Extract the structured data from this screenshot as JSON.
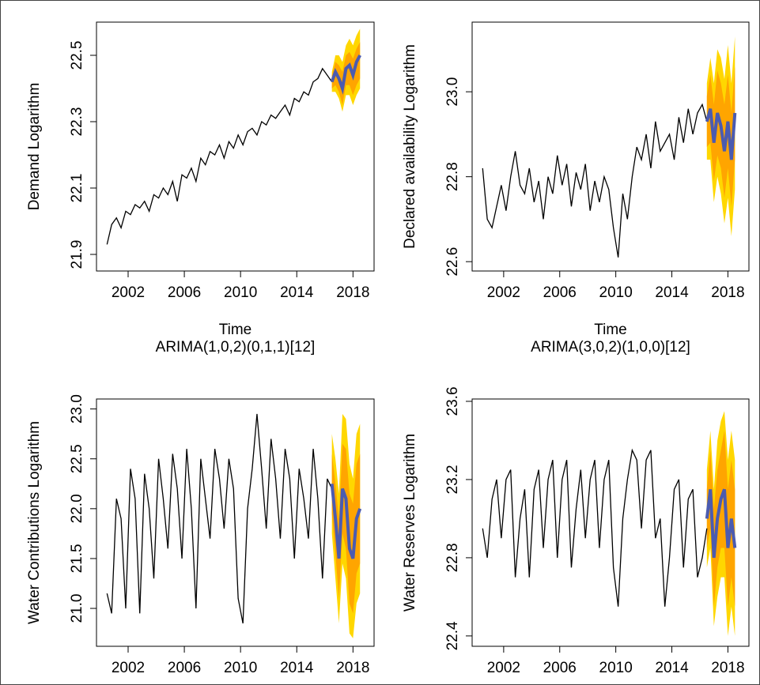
{
  "chart_data": [
    {
      "type": "line",
      "ylabel": "Demand Logarithm",
      "xlabel": "Time",
      "color": "#000000",
      "forecast_color": "#4b5bb0",
      "band80_color": "#ffa500",
      "band95_color": "#ffd700",
      "xlim": [
        1999.75,
        2019.5
      ],
      "xticks": [
        2002,
        2006,
        2010,
        2014,
        2018
      ],
      "ylim": [
        21.85,
        22.6
      ],
      "yticks": [
        21.9,
        22.1,
        22.3,
        22.5
      ],
      "x": [
        2000.5,
        2000.83,
        2001.17,
        2001.5,
        2001.83,
        2002.17,
        2002.5,
        2002.83,
        2003.17,
        2003.5,
        2003.83,
        2004.17,
        2004.5,
        2004.83,
        2005.17,
        2005.5,
        2005.83,
        2006.17,
        2006.5,
        2006.83,
        2007.17,
        2007.5,
        2007.83,
        2008.17,
        2008.5,
        2008.83,
        2009.17,
        2009.5,
        2009.83,
        2010.17,
        2010.5,
        2010.83,
        2011.17,
        2011.5,
        2011.83,
        2012.17,
        2012.5,
        2012.83,
        2013.17,
        2013.5,
        2013.83,
        2014.17,
        2014.5,
        2014.83,
        2015.17,
        2015.5,
        2015.83,
        2016.17,
        2016.5
      ],
      "values": [
        21.93,
        21.99,
        22.01,
        21.98,
        22.03,
        22.02,
        22.05,
        22.04,
        22.06,
        22.03,
        22.08,
        22.07,
        22.1,
        22.08,
        22.12,
        22.06,
        22.14,
        22.13,
        22.16,
        22.12,
        22.19,
        22.17,
        22.21,
        22.2,
        22.23,
        22.19,
        22.24,
        22.22,
        22.26,
        22.23,
        22.27,
        22.28,
        22.26,
        22.3,
        22.29,
        22.32,
        22.31,
        22.33,
        22.35,
        22.32,
        22.37,
        22.36,
        22.39,
        22.38,
        22.42,
        22.43,
        22.46,
        22.44,
        22.42
      ],
      "forecast": {
        "x": [
          2016.5,
          2016.75,
          2017,
          2017.25,
          2017.5,
          2017.75,
          2018,
          2018.25,
          2018.5
        ],
        "mean": [
          22.42,
          22.45,
          22.43,
          22.4,
          22.46,
          22.47,
          22.44,
          22.48,
          22.5
        ],
        "lo80": [
          22.4,
          22.41,
          22.39,
          22.35,
          22.41,
          22.41,
          22.38,
          22.41,
          22.43
        ],
        "hi80": [
          22.44,
          22.48,
          22.47,
          22.45,
          22.5,
          22.51,
          22.49,
          22.52,
          22.54
        ],
        "lo95": [
          22.39,
          22.39,
          22.37,
          22.33,
          22.38,
          22.38,
          22.35,
          22.38,
          22.4
        ],
        "hi95": [
          22.45,
          22.5,
          22.5,
          22.48,
          22.53,
          22.55,
          22.53,
          22.56,
          22.58
        ]
      }
    },
    {
      "type": "line",
      "ylabel": "Declared availability Logarithm",
      "xlabel": "Time",
      "color": "#000000",
      "forecast_color": "#4b5bb0",
      "band80_color": "#ffa500",
      "band95_color": "#ffd700",
      "xlim": [
        1999.75,
        2019.5
      ],
      "xticks": [
        2002,
        2006,
        2010,
        2014,
        2018
      ],
      "ylim": [
        22.578,
        23.164
      ],
      "yticks": [
        22.6,
        22.8,
        {
          "value": 23.0,
          "label": "23.0"
        }
      ],
      "x": [
        2000.5,
        2000.83,
        2001.17,
        2001.5,
        2001.83,
        2002.17,
        2002.5,
        2002.83,
        2003.17,
        2003.5,
        2003.83,
        2004.17,
        2004.5,
        2004.83,
        2005.17,
        2005.5,
        2005.83,
        2006.17,
        2006.5,
        2006.83,
        2007.17,
        2007.5,
        2007.83,
        2008.17,
        2008.5,
        2008.83,
        2009.17,
        2009.5,
        2009.83,
        2010.17,
        2010.5,
        2010.83,
        2011.17,
        2011.5,
        2011.83,
        2012.17,
        2012.5,
        2012.83,
        2013.17,
        2013.5,
        2013.83,
        2014.17,
        2014.5,
        2014.83,
        2015.17,
        2015.5,
        2015.83,
        2016.17,
        2016.5
      ],
      "values": [
        22.82,
        22.7,
        22.68,
        22.73,
        22.78,
        22.72,
        22.8,
        22.86,
        22.78,
        22.76,
        22.82,
        22.74,
        22.79,
        22.7,
        22.8,
        22.76,
        22.85,
        22.78,
        22.83,
        22.73,
        22.81,
        22.77,
        22.83,
        22.72,
        22.79,
        22.74,
        22.8,
        22.77,
        22.68,
        22.61,
        22.76,
        22.7,
        22.8,
        22.87,
        22.84,
        22.9,
        22.82,
        22.93,
        22.86,
        22.88,
        22.9,
        22.84,
        22.94,
        22.88,
        22.96,
        22.9,
        22.95,
        22.97,
        22.93
      ],
      "forecast": {
        "x": [
          2016.5,
          2016.75,
          2017,
          2017.25,
          2017.5,
          2017.75,
          2018,
          2018.25,
          2018.5
        ],
        "mean": [
          22.93,
          22.96,
          22.88,
          22.95,
          22.92,
          22.86,
          22.93,
          22.84,
          22.95
        ],
        "lo80": [
          22.87,
          22.88,
          22.79,
          22.85,
          22.82,
          22.75,
          22.82,
          22.73,
          22.84
        ],
        "hi80": [
          22.99,
          23.04,
          22.97,
          23.05,
          23.02,
          22.97,
          23.04,
          22.95,
          23.06
        ],
        "lo95": [
          22.84,
          22.84,
          22.74,
          22.8,
          22.76,
          22.69,
          22.75,
          22.66,
          22.77
        ],
        "hi95": [
          23.02,
          23.08,
          23.02,
          23.1,
          23.08,
          23.03,
          23.11,
          23.02,
          23.13
        ]
      }
    },
    {
      "type": "line",
      "title": "ARIMA(1,0,2)(0,1,1)[12]",
      "ylabel": "Water Contributions Logarithm",
      "color": "#000000",
      "forecast_color": "#4b5bb0",
      "band80_color": "#ffa500",
      "band95_color": "#ffd700",
      "xlim": [
        1999.75,
        2019.5
      ],
      "xticks": [
        2002,
        2006,
        2010,
        2014,
        2018
      ],
      "ylim": [
        20.62,
        23.1
      ],
      "yticks": [
        {
          "value": 21.0,
          "label": "21.0"
        },
        21.5,
        {
          "value": 22.0,
          "label": "22.0"
        },
        22.5,
        {
          "value": 23.0,
          "label": "23.0"
        }
      ],
      "x": [
        2000.5,
        2000.83,
        2001.17,
        2001.5,
        2001.83,
        2002.17,
        2002.5,
        2002.83,
        2003.17,
        2003.5,
        2003.83,
        2004.17,
        2004.5,
        2004.83,
        2005.17,
        2005.5,
        2005.83,
        2006.17,
        2006.5,
        2006.83,
        2007.17,
        2007.5,
        2007.83,
        2008.17,
        2008.5,
        2008.83,
        2009.17,
        2009.5,
        2009.83,
        2010.17,
        2010.5,
        2010.83,
        2011.17,
        2011.5,
        2011.83,
        2012.17,
        2012.5,
        2012.83,
        2013.17,
        2013.5,
        2013.83,
        2014.17,
        2014.5,
        2014.83,
        2015.17,
        2015.5,
        2015.83,
        2016.17,
        2016.5
      ],
      "values": [
        21.15,
        20.95,
        22.1,
        21.9,
        21.0,
        22.4,
        22.1,
        20.95,
        22.35,
        22.0,
        21.3,
        22.5,
        22.1,
        21.6,
        22.55,
        22.2,
        21.5,
        22.6,
        22.0,
        21.0,
        22.5,
        22.1,
        21.7,
        22.6,
        22.3,
        21.8,
        22.5,
        22.2,
        21.1,
        20.85,
        22.0,
        22.4,
        22.95,
        22.4,
        21.8,
        22.7,
        22.3,
        21.7,
        22.6,
        22.3,
        21.5,
        22.4,
        22.1,
        21.7,
        22.6,
        22.1,
        21.3,
        22.3,
        22.2
      ],
      "forecast": {
        "x": [
          2016.5,
          2016.75,
          2017,
          2017.25,
          2017.5,
          2017.75,
          2018,
          2018.25,
          2018.5
        ],
        "mean": [
          22.25,
          21.9,
          21.5,
          22.2,
          22.1,
          21.6,
          21.5,
          21.9,
          22.0
        ],
        "lo80": [
          21.95,
          21.55,
          21.1,
          21.75,
          21.6,
          21.05,
          20.95,
          21.35,
          21.45
        ],
        "hi80": [
          22.55,
          22.25,
          21.9,
          22.65,
          22.6,
          22.15,
          22.05,
          22.45,
          22.55
        ],
        "lo95": [
          21.75,
          21.3,
          20.85,
          21.45,
          21.3,
          20.75,
          20.7,
          21.05,
          21.15
        ],
        "hi95": [
          22.75,
          22.5,
          22.15,
          22.95,
          22.9,
          22.45,
          22.3,
          22.75,
          22.85
        ]
      }
    },
    {
      "type": "line",
      "title": "ARIMA(3,0,2)(1,0,0)[12]",
      "ylabel": "Water Reserves Logarithm",
      "color": "#000000",
      "forecast_color": "#4b5bb0",
      "band80_color": "#ffa500",
      "band95_color": "#ffd700",
      "xlim": [
        1999.75,
        2019.5
      ],
      "xticks": [
        2002,
        2006,
        2010,
        2014,
        2018
      ],
      "ylim": [
        22.347,
        23.612
      ],
      "yticks": [
        22.4,
        22.8,
        23.2,
        23.6
      ],
      "x": [
        2000.5,
        2000.83,
        2001.17,
        2001.5,
        2001.83,
        2002.17,
        2002.5,
        2002.83,
        2003.17,
        2003.5,
        2003.83,
        2004.17,
        2004.5,
        2004.83,
        2005.17,
        2005.5,
        2005.83,
        2006.17,
        2006.5,
        2006.83,
        2007.17,
        2007.5,
        2007.83,
        2008.17,
        2008.5,
        2008.83,
        2009.17,
        2009.5,
        2009.83,
        2010.17,
        2010.5,
        2010.83,
        2011.17,
        2011.5,
        2011.83,
        2012.17,
        2012.5,
        2012.83,
        2013.17,
        2013.5,
        2013.83,
        2014.17,
        2014.5,
        2014.83,
        2015.17,
        2015.5,
        2015.83,
        2016.17,
        2016.5
      ],
      "values": [
        22.95,
        22.8,
        23.1,
        23.2,
        22.9,
        23.2,
        23.25,
        22.7,
        23.0,
        23.15,
        22.7,
        23.15,
        23.25,
        22.85,
        23.2,
        23.3,
        22.8,
        23.2,
        23.3,
        22.75,
        23.05,
        23.25,
        22.9,
        23.2,
        23.3,
        22.85,
        23.2,
        23.3,
        22.75,
        22.55,
        23.0,
        23.2,
        23.35,
        23.3,
        22.95,
        23.3,
        23.35,
        22.9,
        23.0,
        22.55,
        22.8,
        23.15,
        23.2,
        22.75,
        23.1,
        23.15,
        22.7,
        22.8,
        22.95
      ],
      "forecast": {
        "x": [
          2016.5,
          2016.75,
          2017,
          2017.25,
          2017.5,
          2017.75,
          2018,
          2018.25,
          2018.5
        ],
        "mean": [
          23.0,
          23.15,
          22.8,
          23.0,
          23.1,
          23.15,
          22.85,
          23.0,
          22.85
        ],
        "lo80": [
          22.85,
          22.95,
          22.55,
          22.75,
          22.85,
          22.85,
          22.55,
          22.7,
          22.55
        ],
        "hi80": [
          23.15,
          23.35,
          23.05,
          23.25,
          23.35,
          23.45,
          23.15,
          23.3,
          23.15
        ],
        "lo95": [
          22.75,
          22.85,
          22.45,
          22.6,
          22.7,
          22.7,
          22.4,
          22.55,
          22.4
        ],
        "hi95": [
          23.25,
          23.45,
          23.15,
          23.4,
          23.5,
          23.55,
          23.3,
          23.45,
          23.3
        ]
      }
    }
  ]
}
